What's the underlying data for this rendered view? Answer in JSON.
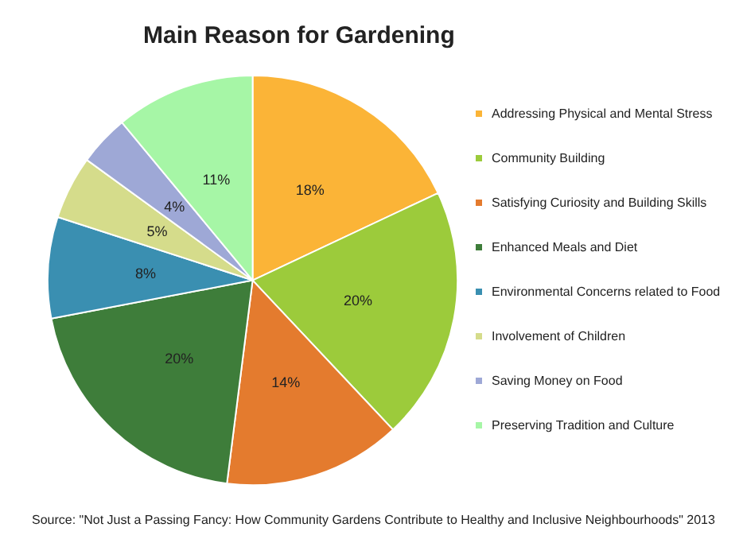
{
  "chart_data": {
    "type": "pie",
    "title": "Main Reason for Gardening",
    "categories": [
      "Addressing Physical and Mental Stress",
      "Community Building",
      "Satisfying Curiosity and Building Skills",
      "Enhanced Meals and Diet",
      "Environmental Concerns related to Food",
      "Involvement of Children",
      "Saving Money on Food",
      "Preserving Tradition and Culture"
    ],
    "values": [
      18,
      20,
      14,
      20,
      8,
      5,
      4,
      11
    ],
    "value_labels": [
      "18%",
      "20%",
      "14%",
      "20%",
      "8%",
      "5%",
      "4%",
      "11%"
    ],
    "colors": [
      "#fbb437",
      "#9ccb3b",
      "#e47b2e",
      "#3e7d3a",
      "#3a8fb1",
      "#d5dc8b",
      "#9ea8d6",
      "#a6f6a6"
    ],
    "legend": "right",
    "annotations": [
      "Source: \"Not Just a Passing Fancy: How Community Gardens Contribute to Healthy and Inclusive Neighbourhoods\" 2013"
    ]
  }
}
